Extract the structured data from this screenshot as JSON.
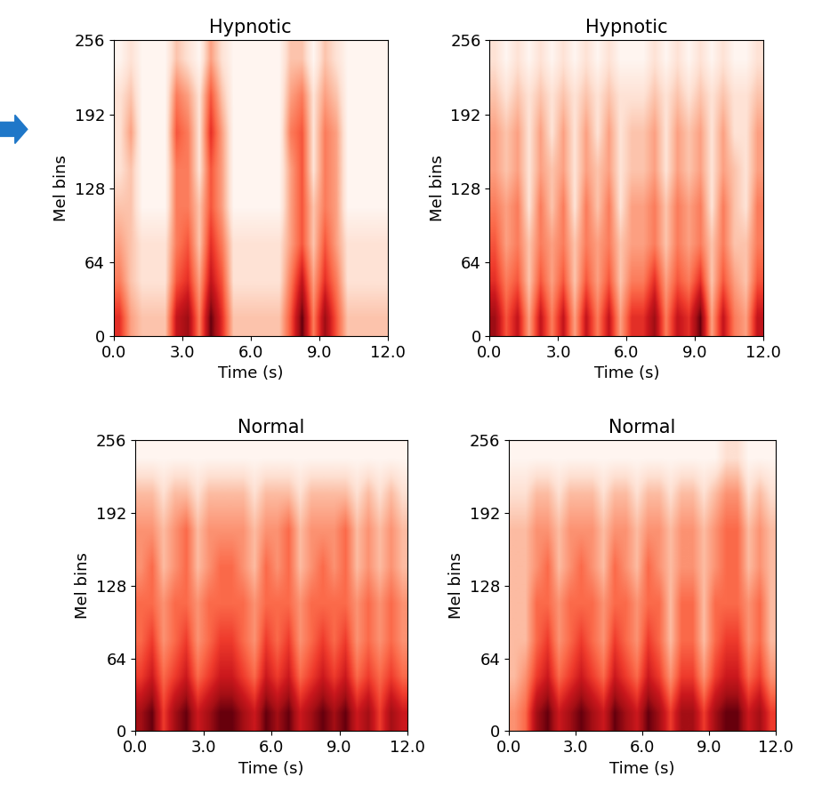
{
  "chart_data": [
    {
      "type": "heatmap",
      "title": "Hypnotic",
      "x_label": "Time (s)",
      "y_label": "Mel bins",
      "xlim": [
        0,
        12
      ],
      "ylim": [
        0,
        256
      ],
      "xticks": [
        {
          "value": 0,
          "label": "0.0"
        },
        {
          "value": 3,
          "label": "3.0"
        },
        {
          "value": 6,
          "label": "6.0"
        },
        {
          "value": 9,
          "label": "9.0"
        },
        {
          "value": 12,
          "label": "12.0"
        }
      ],
      "yticks": [
        0,
        64,
        128,
        192,
        256
      ],
      "cells": [
        [
          0.6,
          0.3,
          0.2,
          0.2,
          0.2,
          0.7,
          0.8,
          0.4,
          0.9,
          0.6,
          0.2,
          0.2,
          0.2,
          0.2,
          0.2,
          0.5,
          0.9,
          0.4,
          0.8,
          0.5,
          0.2,
          0.2,
          0.2,
          0.2
        ],
        [
          0.4,
          0.2,
          0.1,
          0.1,
          0.1,
          0.5,
          0.6,
          0.3,
          0.7,
          0.5,
          0.1,
          0.1,
          0.1,
          0.1,
          0.1,
          0.4,
          0.7,
          0.3,
          0.6,
          0.4,
          0.1,
          0.1,
          0.1,
          0.1
        ],
        [
          0.3,
          0.2,
          0.1,
          0.1,
          0.1,
          0.4,
          0.5,
          0.2,
          0.6,
          0.4,
          0.1,
          0.1,
          0.1,
          0.1,
          0.1,
          0.3,
          0.5,
          0.2,
          0.5,
          0.3,
          0.1,
          0.1,
          0.1,
          0.1
        ],
        [
          0.2,
          0.2,
          0.0,
          0.0,
          0.0,
          0.4,
          0.4,
          0.2,
          0.5,
          0.3,
          0.0,
          0.0,
          0.0,
          0.0,
          0.0,
          0.3,
          0.5,
          0.2,
          0.4,
          0.3,
          0.0,
          0.0,
          0.0,
          0.0
        ],
        [
          0.1,
          0.2,
          0.0,
          0.0,
          0.0,
          0.4,
          0.4,
          0.1,
          0.5,
          0.3,
          0.0,
          0.0,
          0.0,
          0.0,
          0.0,
          0.3,
          0.5,
          0.1,
          0.4,
          0.3,
          0.0,
          0.0,
          0.0,
          0.0
        ],
        [
          0.1,
          0.3,
          0.0,
          0.0,
          0.0,
          0.5,
          0.4,
          0.1,
          0.6,
          0.3,
          0.0,
          0.0,
          0.0,
          0.0,
          0.0,
          0.4,
          0.5,
          0.1,
          0.4,
          0.3,
          0.0,
          0.0,
          0.0,
          0.0
        ],
        [
          0.1,
          0.2,
          0.0,
          0.0,
          0.0,
          0.4,
          0.3,
          0.1,
          0.5,
          0.2,
          0.0,
          0.0,
          0.0,
          0.0,
          0.0,
          0.3,
          0.4,
          0.1,
          0.3,
          0.2,
          0.0,
          0.0,
          0.0,
          0.0
        ],
        [
          0.0,
          0.1,
          0.0,
          0.0,
          0.0,
          0.2,
          0.1,
          0.0,
          0.3,
          0.1,
          0.0,
          0.0,
          0.0,
          0.0,
          0.0,
          0.2,
          0.2,
          0.0,
          0.2,
          0.1,
          0.0,
          0.0,
          0.0,
          0.0
        ]
      ]
    },
    {
      "type": "heatmap",
      "title": "Hypnotic",
      "x_label": "Time (s)",
      "y_label": "Mel bins",
      "xlim": [
        0,
        12
      ],
      "ylim": [
        0,
        256
      ],
      "xticks": [
        {
          "value": 0,
          "label": "0.0"
        },
        {
          "value": 3,
          "label": "3.0"
        },
        {
          "value": 6,
          "label": "6.0"
        },
        {
          "value": 9,
          "label": "9.0"
        },
        {
          "value": 12,
          "label": "12.0"
        }
      ],
      "yticks": [
        0,
        64,
        128,
        192,
        256
      ],
      "cells": [
        [
          0.8,
          0.5,
          0.7,
          0.3,
          0.7,
          0.4,
          0.7,
          0.3,
          0.7,
          0.4,
          0.7,
          0.3,
          0.6,
          0.6,
          0.8,
          0.4,
          0.7,
          0.6,
          0.9,
          0.3,
          0.7,
          0.4,
          0.3,
          0.7
        ],
        [
          0.6,
          0.4,
          0.5,
          0.2,
          0.5,
          0.3,
          0.5,
          0.2,
          0.5,
          0.3,
          0.5,
          0.2,
          0.4,
          0.4,
          0.6,
          0.3,
          0.5,
          0.4,
          0.6,
          0.2,
          0.5,
          0.3,
          0.2,
          0.5
        ],
        [
          0.5,
          0.3,
          0.4,
          0.2,
          0.4,
          0.3,
          0.4,
          0.2,
          0.4,
          0.3,
          0.4,
          0.2,
          0.3,
          0.3,
          0.4,
          0.2,
          0.4,
          0.3,
          0.4,
          0.2,
          0.4,
          0.2,
          0.2,
          0.4
        ],
        [
          0.4,
          0.3,
          0.4,
          0.1,
          0.4,
          0.2,
          0.4,
          0.1,
          0.4,
          0.2,
          0.4,
          0.1,
          0.3,
          0.3,
          0.4,
          0.2,
          0.4,
          0.3,
          0.4,
          0.1,
          0.4,
          0.2,
          0.1,
          0.4
        ],
        [
          0.3,
          0.2,
          0.3,
          0.1,
          0.3,
          0.2,
          0.3,
          0.1,
          0.3,
          0.2,
          0.3,
          0.1,
          0.2,
          0.2,
          0.3,
          0.1,
          0.3,
          0.2,
          0.3,
          0.1,
          0.3,
          0.2,
          0.1,
          0.3
        ],
        [
          0.3,
          0.2,
          0.3,
          0.1,
          0.3,
          0.1,
          0.3,
          0.1,
          0.3,
          0.1,
          0.3,
          0.1,
          0.2,
          0.2,
          0.3,
          0.1,
          0.3,
          0.2,
          0.3,
          0.1,
          0.3,
          0.1,
          0.1,
          0.3
        ],
        [
          0.2,
          0.1,
          0.2,
          0.1,
          0.2,
          0.1,
          0.2,
          0.1,
          0.2,
          0.1,
          0.2,
          0.1,
          0.1,
          0.1,
          0.2,
          0.1,
          0.2,
          0.1,
          0.2,
          0.1,
          0.2,
          0.1,
          0.1,
          0.2
        ],
        [
          0.1,
          0.0,
          0.1,
          0.0,
          0.1,
          0.0,
          0.1,
          0.0,
          0.1,
          0.0,
          0.1,
          0.0,
          0.0,
          0.0,
          0.1,
          0.0,
          0.1,
          0.0,
          0.1,
          0.0,
          0.1,
          0.0,
          0.0,
          0.1
        ]
      ]
    },
    {
      "type": "heatmap",
      "title": "Normal",
      "x_label": "Time (s)",
      "y_label": "Mel bins",
      "xlim": [
        0,
        12
      ],
      "ylim": [
        0,
        256
      ],
      "xticks": [
        {
          "value": 0,
          "label": "0.0"
        },
        {
          "value": 3,
          "label": "3.0"
        },
        {
          "value": 6,
          "label": "6.0"
        },
        {
          "value": 9,
          "label": "9.0"
        },
        {
          "value": 12,
          "label": "12.0"
        }
      ],
      "yticks": [
        0,
        64,
        128,
        192,
        256
      ],
      "cells": [
        [
          0.8,
          0.9,
          0.6,
          0.8,
          0.9,
          0.7,
          0.8,
          0.9,
          0.9,
          0.8,
          0.7,
          0.9,
          0.8,
          0.9,
          0.7,
          0.8,
          0.9,
          0.8,
          0.9,
          0.7,
          0.8,
          0.6,
          0.8,
          0.7
        ],
        [
          0.6,
          0.7,
          0.5,
          0.6,
          0.7,
          0.5,
          0.6,
          0.7,
          0.7,
          0.6,
          0.5,
          0.7,
          0.6,
          0.7,
          0.5,
          0.6,
          0.7,
          0.6,
          0.7,
          0.5,
          0.6,
          0.5,
          0.6,
          0.5
        ],
        [
          0.5,
          0.6,
          0.4,
          0.5,
          0.6,
          0.4,
          0.5,
          0.6,
          0.6,
          0.5,
          0.4,
          0.6,
          0.5,
          0.6,
          0.4,
          0.5,
          0.6,
          0.5,
          0.6,
          0.4,
          0.5,
          0.4,
          0.5,
          0.4
        ],
        [
          0.5,
          0.5,
          0.4,
          0.5,
          0.5,
          0.4,
          0.5,
          0.5,
          0.5,
          0.5,
          0.4,
          0.5,
          0.5,
          0.5,
          0.4,
          0.5,
          0.5,
          0.5,
          0.5,
          0.4,
          0.5,
          0.4,
          0.5,
          0.4
        ],
        [
          0.4,
          0.5,
          0.3,
          0.4,
          0.5,
          0.3,
          0.4,
          0.5,
          0.5,
          0.4,
          0.3,
          0.5,
          0.4,
          0.5,
          0.3,
          0.4,
          0.5,
          0.4,
          0.5,
          0.3,
          0.4,
          0.3,
          0.4,
          0.3
        ],
        [
          0.4,
          0.4,
          0.3,
          0.4,
          0.5,
          0.3,
          0.4,
          0.4,
          0.4,
          0.4,
          0.3,
          0.4,
          0.4,
          0.5,
          0.3,
          0.4,
          0.4,
          0.4,
          0.5,
          0.3,
          0.4,
          0.3,
          0.4,
          0.3
        ],
        [
          0.3,
          0.3,
          0.2,
          0.3,
          0.3,
          0.2,
          0.3,
          0.3,
          0.3,
          0.3,
          0.2,
          0.3,
          0.3,
          0.3,
          0.2,
          0.3,
          0.3,
          0.3,
          0.3,
          0.2,
          0.3,
          0.2,
          0.3,
          0.2
        ],
        [
          0.1,
          0.1,
          0.1,
          0.1,
          0.1,
          0.1,
          0.1,
          0.1,
          0.1,
          0.1,
          0.1,
          0.1,
          0.1,
          0.1,
          0.1,
          0.1,
          0.1,
          0.1,
          0.1,
          0.1,
          0.1,
          0.1,
          0.1,
          0.1
        ]
      ]
    },
    {
      "type": "heatmap",
      "title": "Normal",
      "x_label": "Time (s)",
      "y_label": "Mel bins",
      "xlim": [
        0,
        12
      ],
      "ylim": [
        0,
        256
      ],
      "xticks": [
        {
          "value": 0,
          "label": "0.0"
        },
        {
          "value": 3,
          "label": "3.0"
        },
        {
          "value": 6,
          "label": "6.0"
        },
        {
          "value": 9,
          "label": "9.0"
        },
        {
          "value": 12,
          "label": "12.0"
        }
      ],
      "yticks": [
        0,
        64,
        128,
        192,
        256
      ],
      "cells": [
        [
          0.4,
          0.5,
          0.8,
          0.9,
          0.7,
          0.8,
          0.9,
          0.8,
          0.7,
          0.9,
          0.8,
          0.7,
          0.9,
          0.8,
          0.6,
          0.8,
          0.8,
          0.6,
          0.8,
          0.9,
          0.9,
          0.7,
          0.8,
          0.6
        ],
        [
          0.3,
          0.4,
          0.6,
          0.7,
          0.5,
          0.6,
          0.7,
          0.6,
          0.5,
          0.7,
          0.6,
          0.5,
          0.7,
          0.6,
          0.4,
          0.6,
          0.6,
          0.4,
          0.6,
          0.7,
          0.7,
          0.5,
          0.6,
          0.4
        ],
        [
          0.3,
          0.3,
          0.5,
          0.6,
          0.4,
          0.5,
          0.6,
          0.5,
          0.4,
          0.6,
          0.5,
          0.4,
          0.6,
          0.5,
          0.3,
          0.5,
          0.5,
          0.3,
          0.5,
          0.6,
          0.6,
          0.4,
          0.5,
          0.3
        ],
        [
          0.3,
          0.3,
          0.5,
          0.5,
          0.4,
          0.5,
          0.5,
          0.5,
          0.4,
          0.5,
          0.5,
          0.4,
          0.5,
          0.5,
          0.3,
          0.5,
          0.5,
          0.3,
          0.5,
          0.5,
          0.5,
          0.4,
          0.5,
          0.3
        ],
        [
          0.3,
          0.3,
          0.4,
          0.5,
          0.3,
          0.4,
          0.5,
          0.4,
          0.3,
          0.5,
          0.4,
          0.3,
          0.5,
          0.4,
          0.3,
          0.4,
          0.4,
          0.3,
          0.4,
          0.5,
          0.5,
          0.3,
          0.4,
          0.3
        ],
        [
          0.3,
          0.3,
          0.4,
          0.4,
          0.3,
          0.4,
          0.4,
          0.4,
          0.3,
          0.4,
          0.4,
          0.3,
          0.4,
          0.4,
          0.3,
          0.4,
          0.4,
          0.3,
          0.4,
          0.5,
          0.5,
          0.3,
          0.4,
          0.3
        ],
        [
          0.2,
          0.2,
          0.3,
          0.3,
          0.2,
          0.3,
          0.3,
          0.3,
          0.2,
          0.3,
          0.3,
          0.2,
          0.3,
          0.3,
          0.2,
          0.3,
          0.3,
          0.2,
          0.3,
          0.4,
          0.4,
          0.2,
          0.3,
          0.2
        ],
        [
          0.1,
          0.1,
          0.1,
          0.1,
          0.1,
          0.1,
          0.1,
          0.1,
          0.1,
          0.1,
          0.1,
          0.1,
          0.1,
          0.1,
          0.1,
          0.1,
          0.1,
          0.1,
          0.1,
          0.2,
          0.2,
          0.1,
          0.1,
          0.1
        ]
      ]
    }
  ]
}
